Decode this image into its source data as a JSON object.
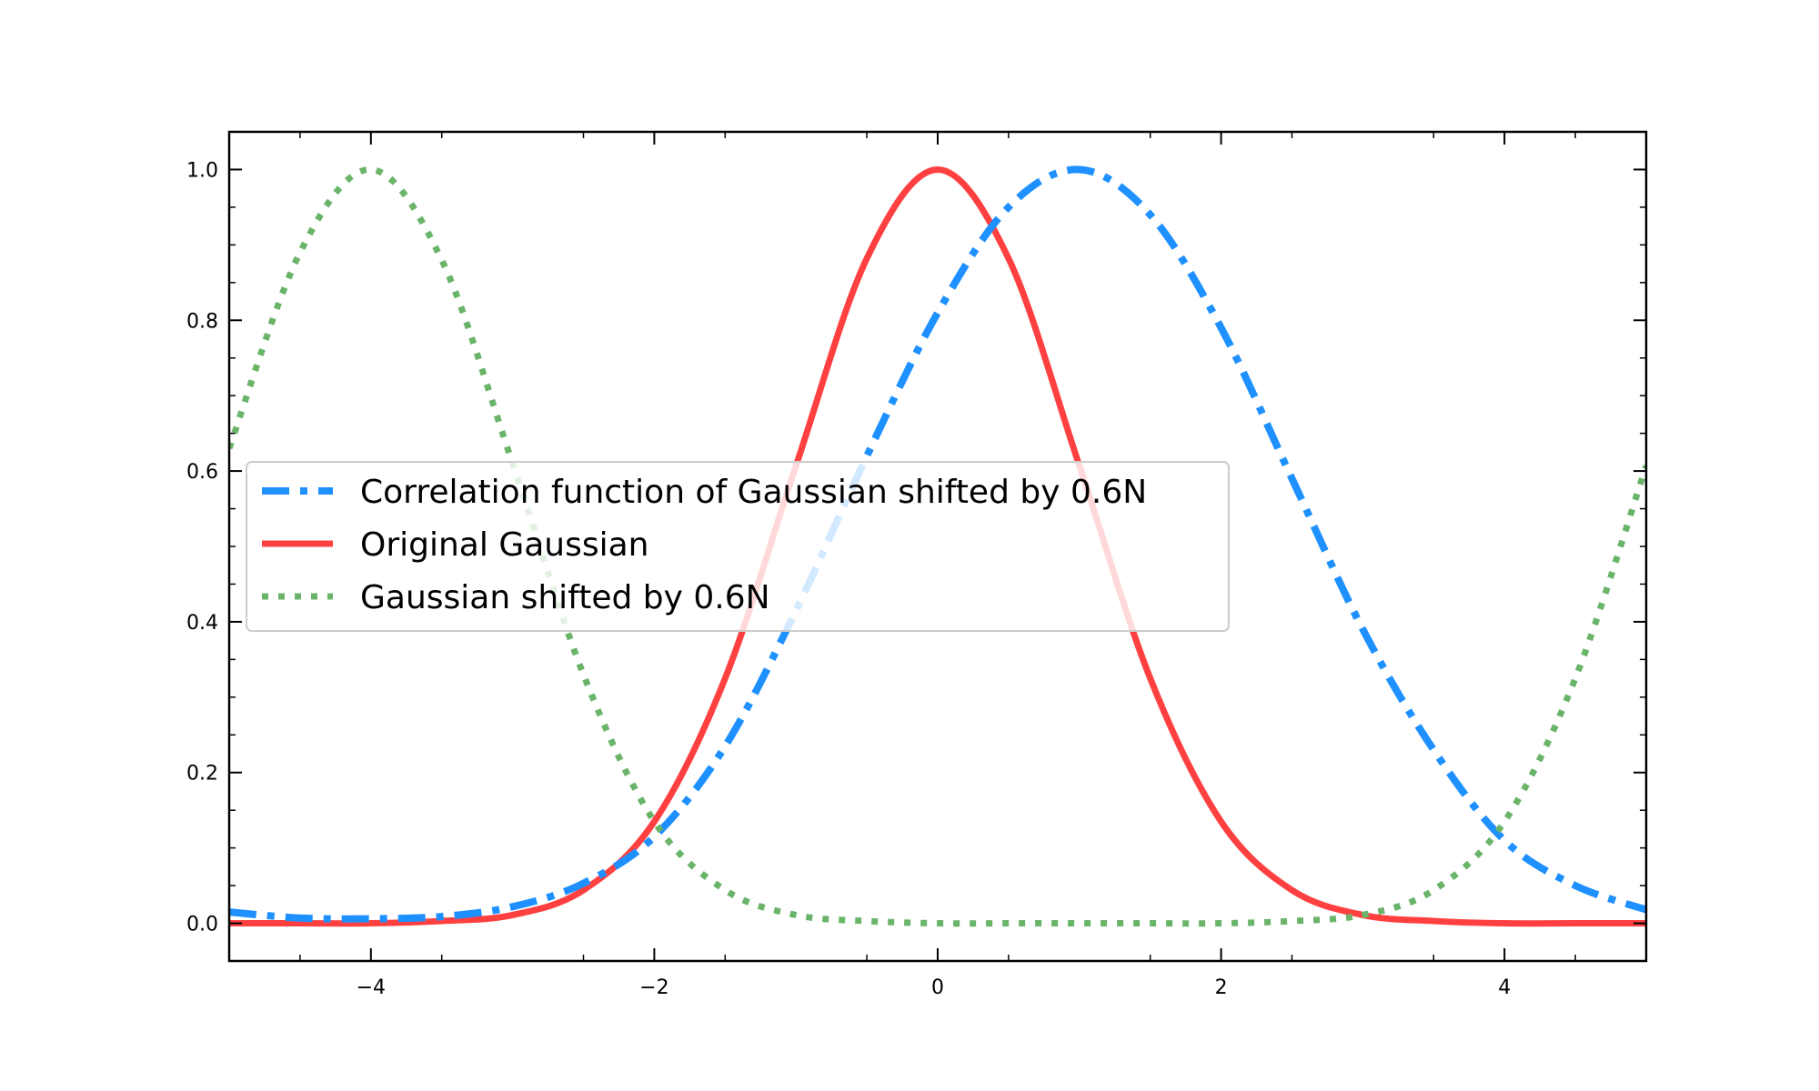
{
  "chart_data": {
    "type": "line",
    "title": "",
    "xlabel": "",
    "ylabel": "",
    "xlim": [
      -5,
      5
    ],
    "ylim": [
      -0.05,
      1.05
    ],
    "x_ticks": [
      -4,
      -2,
      0,
      2,
      4
    ],
    "x_tick_labels": [
      "−4",
      "−2",
      "0",
      "2",
      "4"
    ],
    "y_ticks": [
      0.0,
      0.2,
      0.4,
      0.6,
      0.8,
      1.0
    ],
    "y_tick_labels": [
      "0.0",
      "0.2",
      "0.4",
      "0.6",
      "0.8",
      "1.0"
    ],
    "grid": false,
    "legend_position": "center-left",
    "series": [
      {
        "name": "Correlation function of Gaussian shifted by 0.6N",
        "color": "#1e90ff",
        "style": "dashdot",
        "x": [
          -5,
          -4.5,
          -4,
          -3.5,
          -3,
          -2.5,
          -2,
          -1.5,
          -1,
          -0.5,
          0,
          0.5,
          1,
          1.5,
          2,
          2.5,
          3,
          3.5,
          4,
          4.5,
          5
        ],
        "y": [
          0.015,
          0.007,
          0.006,
          0.009,
          0.022,
          0.053,
          0.115,
          0.235,
          0.415,
          0.62,
          0.81,
          0.95,
          1.0,
          0.94,
          0.79,
          0.59,
          0.39,
          0.23,
          0.11,
          0.05,
          0.018
        ]
      },
      {
        "name": "Original Gaussian",
        "color": "#ff4040",
        "style": "solid",
        "x": [
          -5,
          -4.5,
          -4,
          -3.5,
          -3,
          -2.5,
          -2,
          -1.5,
          -1,
          -0.5,
          0,
          0.5,
          1,
          1.5,
          2,
          2.5,
          3,
          3.5,
          4,
          4.5,
          5
        ],
        "y": [
          0.0,
          0.0,
          0.0,
          0.003,
          0.011,
          0.044,
          0.135,
          0.325,
          0.607,
          0.882,
          1.0,
          0.882,
          0.607,
          0.325,
          0.135,
          0.044,
          0.011,
          0.003,
          0.0,
          0.0,
          0.0
        ]
      },
      {
        "name": "Gaussian shifted by 0.6N",
        "color": "#6ab46a",
        "style": "dotted",
        "x": [
          -5,
          -4.5,
          -4,
          -3.5,
          -3,
          -2.5,
          -2,
          -1.5,
          -1,
          -0.5,
          0,
          0.5,
          1,
          1.5,
          2,
          2.5,
          3,
          3.5,
          4,
          4.5,
          5
        ],
        "y": [
          0.63,
          0.89,
          1.0,
          0.88,
          0.61,
          0.33,
          0.135,
          0.044,
          0.011,
          0.003,
          0.0,
          0.0,
          0.0,
          0.0,
          0.0,
          0.003,
          0.011,
          0.044,
          0.135,
          0.325,
          0.607
        ]
      }
    ]
  }
}
